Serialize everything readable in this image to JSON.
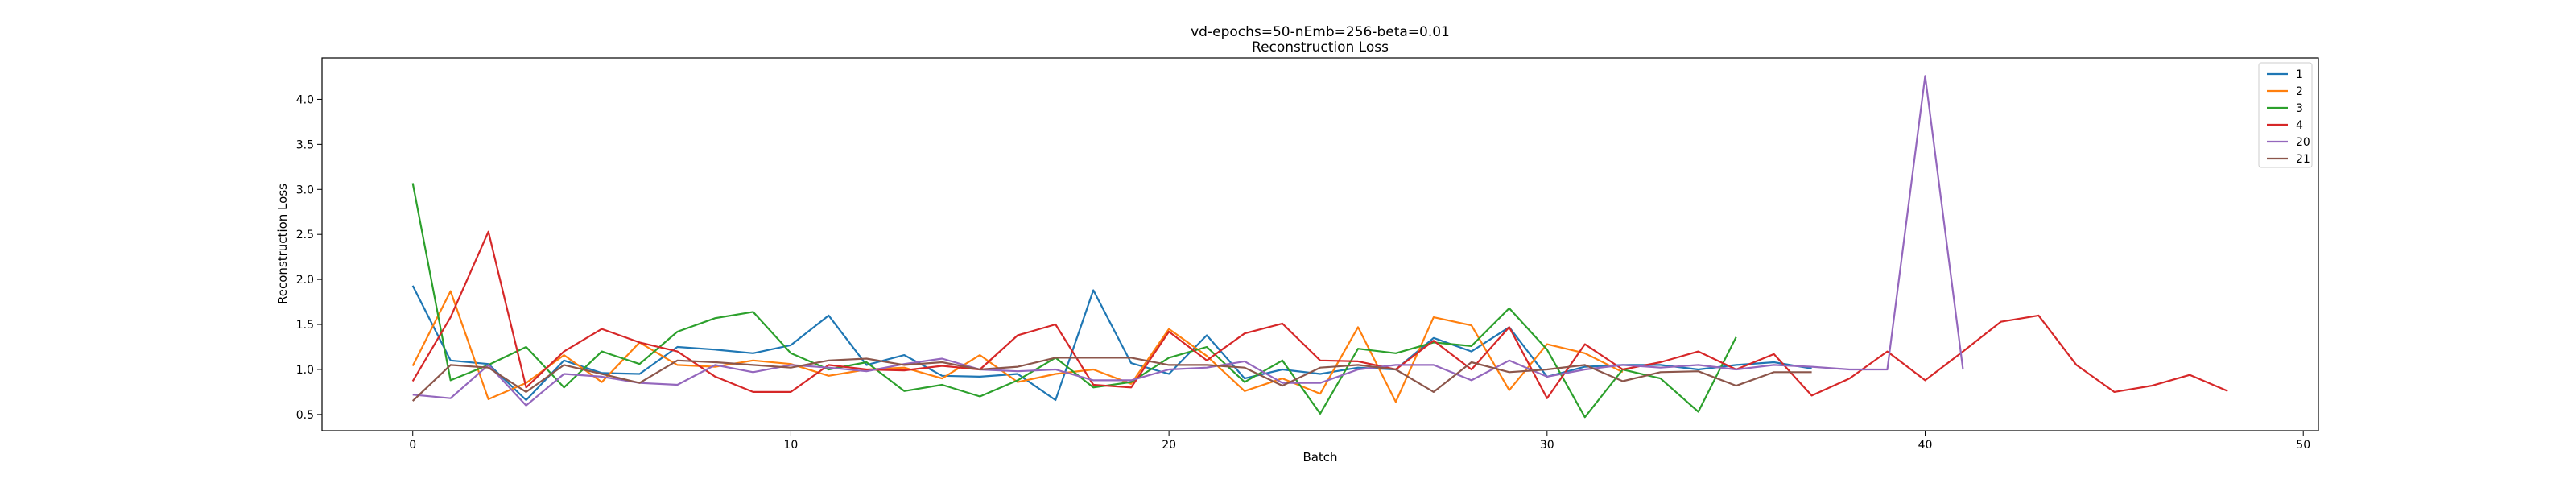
{
  "chart_data": {
    "type": "line",
    "title": "vd-epochs=50-nEmb=256-beta=0.01",
    "subtitle": "Reconstruction Loss",
    "xlabel": "Batch",
    "ylabel": "Reconstruction Loss",
    "xlim": [
      -2.4,
      50.4
    ],
    "ylim": [
      0.32,
      4.46
    ],
    "x_ticks": [
      0,
      10,
      20,
      30,
      40,
      50
    ],
    "y_ticks": [
      0.5,
      1.0,
      1.5,
      2.0,
      2.5,
      3.0,
      3.5,
      4.0
    ],
    "grid": false,
    "legend_position": "top-right",
    "series": [
      {
        "name": "1",
        "color": "#1f77b4",
        "values": [
          1.93,
          1.1,
          1.06,
          0.66,
          1.1,
          0.96,
          0.95,
          1.25,
          1.22,
          1.18,
          1.27,
          1.6,
          1.05,
          1.16,
          0.93,
          0.92,
          0.95,
          0.66,
          1.88,
          1.07,
          0.95,
          1.38,
          0.9,
          1.0,
          0.95,
          1.02,
          1.0,
          1.35,
          1.2,
          1.47,
          0.92,
          1.03,
          1.05,
          1.05,
          1.0,
          1.05,
          1.08,
          1.01
        ]
      },
      {
        "name": "2",
        "color": "#ff7f0e",
        "values": [
          1.04,
          1.87,
          0.67,
          0.85,
          1.16,
          0.86,
          1.3,
          1.05,
          1.03,
          1.1,
          1.06,
          0.93,
          1.0,
          1.02,
          0.9,
          1.16,
          0.86,
          0.95,
          1.0,
          0.84,
          1.45,
          1.15,
          0.76,
          0.9,
          0.73,
          1.47,
          0.64,
          1.58,
          1.49,
          0.77,
          1.28,
          1.18,
          0.97
        ]
      },
      {
        "name": "3",
        "color": "#2ca02c",
        "values": [
          3.07,
          0.88,
          1.05,
          1.25,
          0.8,
          1.2,
          1.06,
          1.42,
          1.57,
          1.64,
          1.18,
          1.0,
          1.08,
          0.76,
          0.83,
          0.7,
          0.88,
          1.13,
          0.8,
          0.86,
          1.13,
          1.25,
          0.86,
          1.1,
          0.51,
          1.23,
          1.18,
          1.3,
          1.26,
          1.68,
          1.22,
          0.47,
          1.0,
          0.9,
          0.53,
          1.36
        ]
      },
      {
        "name": "4",
        "color": "#d62728",
        "values": [
          0.87,
          1.58,
          2.53,
          0.8,
          1.2,
          1.45,
          1.3,
          1.2,
          0.92,
          0.75,
          0.75,
          1.05,
          1.0,
          0.99,
          1.04,
          1.0,
          1.38,
          1.5,
          0.83,
          0.8,
          1.42,
          1.1,
          1.4,
          1.51,
          1.1,
          1.09,
          1.0,
          1.32,
          1.0,
          1.47,
          0.68,
          1.28,
          1.0,
          1.08,
          1.2,
          1.0,
          1.17,
          0.71,
          0.9,
          1.2,
          0.88,
          1.2,
          1.53,
          1.6,
          1.05,
          0.75,
          0.82,
          0.94,
          0.76
        ]
      },
      {
        "name": "20",
        "color": "#9467bd",
        "values": [
          0.72,
          0.68,
          1.05,
          0.6,
          0.95,
          0.92,
          0.85,
          0.83,
          1.05,
          0.97,
          1.05,
          1.02,
          0.98,
          1.06,
          1.12,
          1.0,
          0.98,
          1.0,
          0.88,
          0.88,
          1.0,
          1.02,
          1.09,
          0.85,
          0.85,
          1.0,
          1.05,
          1.05,
          0.88,
          1.1,
          0.92,
          1.0,
          1.05,
          1.02,
          1.05,
          1.0,
          1.05,
          1.03,
          1.0,
          1.0,
          4.26,
          1.0
        ]
      },
      {
        "name": "21",
        "color": "#8c564b",
        "values": [
          0.65,
          1.05,
          1.02,
          0.75,
          1.05,
          0.95,
          0.85,
          1.1,
          1.08,
          1.05,
          1.02,
          1.1,
          1.12,
          1.05,
          1.08,
          1.0,
          1.03,
          1.13,
          1.13,
          1.13,
          1.05,
          1.05,
          1.02,
          0.82,
          1.02,
          1.05,
          1.0,
          0.75,
          1.08,
          0.97,
          1.0,
          1.05,
          0.87,
          0.97,
          0.98,
          0.82,
          0.97,
          0.97
        ]
      }
    ]
  }
}
